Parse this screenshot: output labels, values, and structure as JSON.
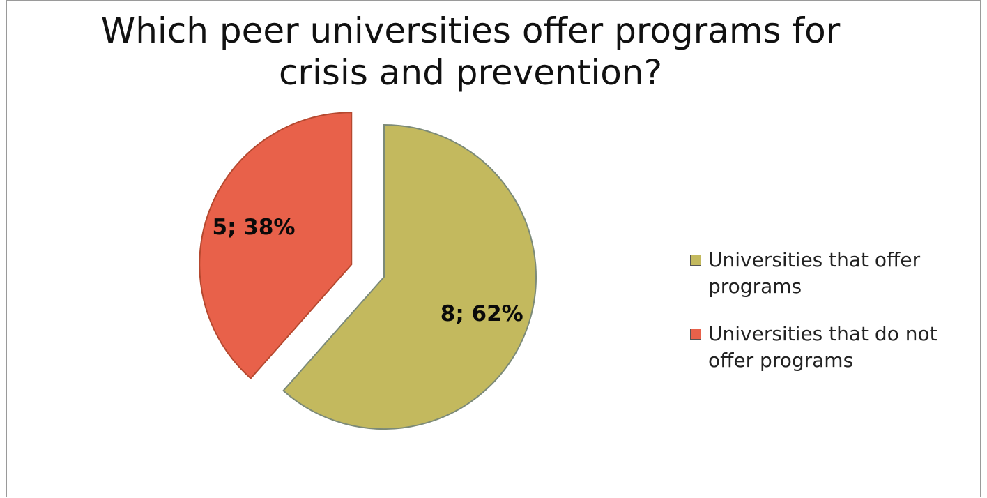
{
  "chart_data": {
    "type": "pie",
    "title": "Which peer universities offer programs for crisis and prevention?",
    "title_lines": [
      "Which peer universities offer programs for",
      "crisis and prevention?"
    ],
    "slices": [
      {
        "name": "Universities that offer programs",
        "value": 8,
        "percent": 62,
        "label": "8; 62%",
        "color": "#c3b95e",
        "exploded": false
      },
      {
        "name": "Universities that do not offer programs",
        "value": 5,
        "percent": 38,
        "label": "5; 38%",
        "color": "#e8614a",
        "exploded": true
      }
    ],
    "legend": {
      "placement": "right",
      "items": [
        {
          "label": "Universities that offer programs",
          "color": "#c3b95e"
        },
        {
          "label": "Universities that do not offer programs",
          "color": "#e8614a"
        }
      ]
    }
  }
}
